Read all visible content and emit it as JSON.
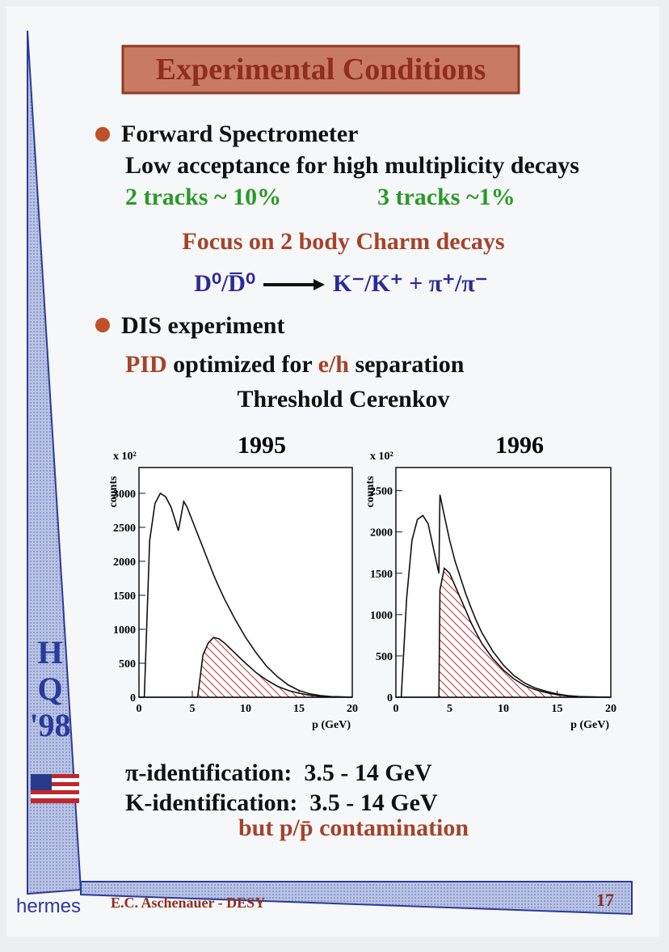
{
  "slide": {
    "title": "Experimental Conditions",
    "bullet1": "Forward Spectrometer",
    "line1": "Low acceptance for high multiplicity decays",
    "tracks2": "2 tracks ~ 10%",
    "tracks3": "3 tracks ~1%",
    "focus": "Focus on 2 body Charm decays",
    "decay_lhs": "D⁰/D̅⁰",
    "decay_rhs": "K⁻/K⁺ + π⁺/π⁻",
    "bullet2": "DIS experiment",
    "pid_line": [
      "PID",
      " optimized for ",
      "e/h",
      " separation"
    ],
    "threshold": "Threshold Cerenkov",
    "pi_id": "π-identification:  3.5 - 14 GeV",
    "k_id": "K-identification:  3.5 - 14 GeV",
    "contamination": "but p/p̄ contamination",
    "side": [
      "H",
      "Q",
      "'98"
    ],
    "logo": "hermes",
    "footer": "E.C. Aschenauer - DESY",
    "page": "17"
  },
  "chart_data": [
    {
      "type": "line",
      "title": "1995",
      "y_multiplier": "x 10²",
      "ylabel": "counts",
      "xlabel": "p (GeV)",
      "x": [
        0,
        0.5,
        1,
        1.5,
        2,
        2.5,
        3,
        3.5,
        3.7,
        4.2,
        4.5,
        5,
        5.5,
        6,
        6.5,
        7,
        7.5,
        8,
        9,
        10,
        11,
        12,
        13,
        14,
        15,
        16,
        17,
        18,
        19,
        20
      ],
      "series": [
        {
          "color": "#111111",
          "values": [
            0,
            0,
            2300,
            2850,
            3000,
            2950,
            2800,
            2550,
            2450,
            2880,
            2800,
            2600,
            2400,
            2200,
            2000,
            1800,
            1620,
            1450,
            1150,
            880,
            650,
            450,
            300,
            180,
            100,
            50,
            25,
            10,
            5,
            0
          ]
        },
        {
          "color": "#c0272d",
          "hatch": true,
          "values": [
            0,
            0,
            0,
            0,
            0,
            0,
            0,
            0,
            0,
            0,
            0,
            0,
            0,
            620,
            800,
            880,
            860,
            800,
            650,
            500,
            360,
            250,
            160,
            100,
            60,
            30,
            15,
            8,
            3,
            0
          ]
        }
      ],
      "xlim": [
        0,
        20
      ],
      "xticks": [
        0,
        5,
        10,
        15,
        20
      ],
      "ylim": [
        0,
        3380
      ],
      "yticks": [
        0,
        500,
        1000,
        1500,
        2000,
        2500,
        3000
      ]
    },
    {
      "type": "line",
      "title": "1996",
      "y_multiplier": "x 10²",
      "ylabel": "counts",
      "xlabel": "p (GeV)",
      "x": [
        0,
        0.5,
        1,
        1.5,
        2,
        2.5,
        3,
        3.5,
        4,
        4.1,
        4.5,
        5,
        5.5,
        6,
        6.5,
        7,
        7.5,
        8,
        9,
        10,
        11,
        12,
        13,
        14,
        15,
        16,
        17,
        18,
        19,
        20
      ],
      "series": [
        {
          "color": "#111111",
          "values": [
            0,
            0,
            1200,
            1900,
            2150,
            2200,
            2100,
            1800,
            1500,
            2450,
            2200,
            1900,
            1650,
            1450,
            1250,
            1080,
            920,
            780,
            560,
            390,
            260,
            170,
            110,
            70,
            40,
            20,
            10,
            5,
            2,
            0
          ]
        },
        {
          "color": "#c0272d",
          "hatch": true,
          "values": [
            0,
            0,
            0,
            0,
            0,
            0,
            0,
            0,
            0,
            1300,
            1560,
            1500,
            1350,
            1200,
            1050,
            900,
            770,
            650,
            470,
            330,
            220,
            140,
            90,
            55,
            30,
            15,
            8,
            4,
            2,
            0
          ]
        }
      ],
      "xlim": [
        0,
        20
      ],
      "xticks": [
        0,
        5,
        10,
        15,
        20
      ],
      "ylim": [
        0,
        2780
      ],
      "yticks": [
        0,
        500,
        1000,
        1500,
        2000,
        2500
      ]
    }
  ]
}
